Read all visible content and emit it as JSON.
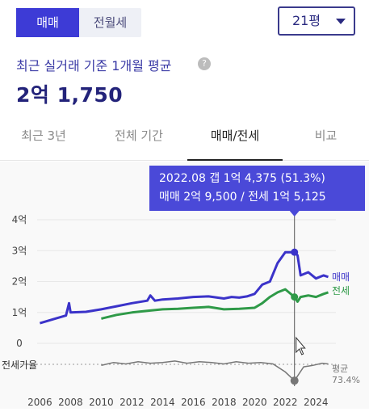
{
  "header": {
    "tabs": [
      {
        "label": "매매",
        "active": true
      },
      {
        "label": "전월세",
        "active": false
      }
    ],
    "size_select": "21평",
    "subtitle": "최근 실거래 기준 1개월 평균",
    "help_icon": "question-circle-icon",
    "price": "2억 1,750"
  },
  "period_tabs": [
    {
      "label": "최근 3년",
      "active": false
    },
    {
      "label": "전체 기간",
      "active": false
    },
    {
      "label": "매매/전세",
      "active": true
    },
    {
      "label": "비교",
      "active": false
    }
  ],
  "tooltip": {
    "line1": "2022.08  갭 1억 4,375 (51.3%)",
    "line2": "매매 2억 9,500 / 전세 1억 5,125"
  },
  "colors": {
    "accent": "#3d3bd6",
    "sale": "#3b33c9",
    "jeonse": "#2f9a48",
    "ratio": "#777777",
    "tooltip": "#4a49d8"
  },
  "chart_data": {
    "type": "line",
    "x_unit": "year",
    "xlim": [
      2005.4,
      2025.3
    ],
    "ylim": [
      0,
      4
    ],
    "y_ticks": [
      "0",
      "1억",
      "2억",
      "3억",
      "4억"
    ],
    "x_ticks": [
      "2006",
      "2008",
      "2010",
      "2012",
      "2014",
      "2016",
      "2018",
      "2020",
      "2022",
      "2024"
    ],
    "cursor_x": 2022.6,
    "series": [
      {
        "name": "매매",
        "values_unit": "억",
        "x": [
          2006.0,
          2007.0,
          2007.7,
          2007.9,
          2008.0,
          2009.0,
          2010.0,
          2011.0,
          2012.0,
          2013.0,
          2013.2,
          2013.5,
          2014.0,
          2015.0,
          2016.0,
          2017.0,
          2018.0,
          2018.5,
          2019.0,
          2019.5,
          2020.0,
          2020.5,
          2021.0,
          2021.5,
          2022.0,
          2022.6,
          2022.8,
          2023.0,
          2023.5,
          2024.0,
          2024.5,
          2024.8
        ],
        "values": [
          0.65,
          0.8,
          0.9,
          1.3,
          1.0,
          1.02,
          1.1,
          1.2,
          1.3,
          1.38,
          1.55,
          1.38,
          1.42,
          1.45,
          1.5,
          1.52,
          1.45,
          1.5,
          1.48,
          1.52,
          1.6,
          1.9,
          2.0,
          2.6,
          2.95,
          2.95,
          2.85,
          2.2,
          2.3,
          2.1,
          2.2,
          2.15
        ]
      },
      {
        "name": "전세",
        "values_unit": "억",
        "x": [
          2010.0,
          2011.0,
          2012.0,
          2013.0,
          2014.0,
          2015.0,
          2016.0,
          2017.0,
          2018.0,
          2019.0,
          2020.0,
          2020.5,
          2021.0,
          2021.5,
          2022.0,
          2022.6,
          2022.8,
          2023.0,
          2023.5,
          2024.0,
          2024.5,
          2024.8
        ],
        "values": [
          0.8,
          0.92,
          1.0,
          1.05,
          1.1,
          1.12,
          1.15,
          1.18,
          1.1,
          1.12,
          1.15,
          1.3,
          1.5,
          1.65,
          1.75,
          1.5,
          1.35,
          1.5,
          1.55,
          1.5,
          1.6,
          1.65
        ]
      }
    ],
    "ratio": {
      "label": "전세가율",
      "avg_label": "평균",
      "avg_value": "73.4%",
      "x": [
        2010.0,
        2010.8,
        2011.6,
        2012.4,
        2013.2,
        2014.0,
        2014.8,
        2015.6,
        2016.4,
        2017.2,
        2018.0,
        2018.8,
        2019.6,
        2020.4,
        2021.2,
        2022.0,
        2022.6,
        2023.2,
        2023.8,
        2024.4,
        2024.8
      ],
      "values": [
        72,
        76,
        74,
        77,
        75,
        76,
        78,
        75,
        77,
        76,
        74,
        77,
        75,
        76,
        74,
        63,
        51,
        70,
        72,
        75,
        74
      ]
    },
    "legend": {
      "sale": "매매",
      "jeonse": "전세"
    }
  }
}
